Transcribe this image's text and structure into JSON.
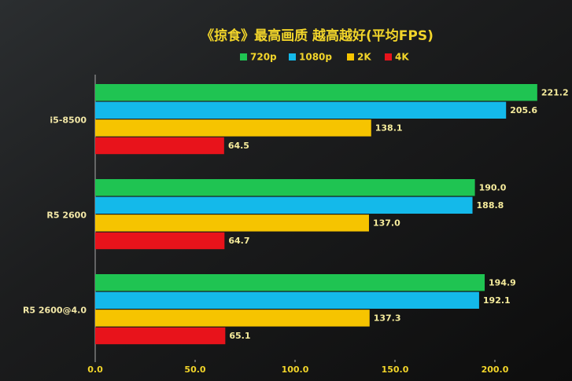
{
  "chart_data": {
    "type": "hbar",
    "title": "《掠食》最高画质 越高越好(平均FPS)",
    "categories": [
      "i5-8500",
      "R5 2600",
      "R5 2600@4.0"
    ],
    "series": [
      {
        "name": "720p",
        "color": "#1fc452",
        "values": [
          221.2,
          190.0,
          194.9
        ],
        "value_labels": [
          "221.2",
          "190.0",
          "194.9"
        ]
      },
      {
        "name": "1080p",
        "color": "#14b9ea",
        "values": [
          205.6,
          188.8,
          192.1
        ],
        "value_labels": [
          "205.6",
          "188.8",
          "192.1"
        ]
      },
      {
        "name": "2K",
        "color": "#f6c400",
        "values": [
          138.1,
          137.0,
          137.3
        ],
        "value_labels": [
          "138.1",
          "137.0",
          "137.3"
        ]
      },
      {
        "name": "4K",
        "color": "#e8131b",
        "values": [
          64.5,
          64.7,
          65.1
        ],
        "value_labels": [
          "64.5",
          "64.7",
          "65.1"
        ]
      }
    ],
    "xlim": [
      0,
      238
    ],
    "xticks": [
      {
        "value": 0,
        "label": "0.0"
      },
      {
        "value": 50,
        "label": "50.0"
      },
      {
        "value": 100,
        "label": "100.0"
      },
      {
        "value": 150,
        "label": "150.0"
      },
      {
        "value": 200,
        "label": "200.0"
      }
    ],
    "grid": false,
    "legend": "top"
  }
}
